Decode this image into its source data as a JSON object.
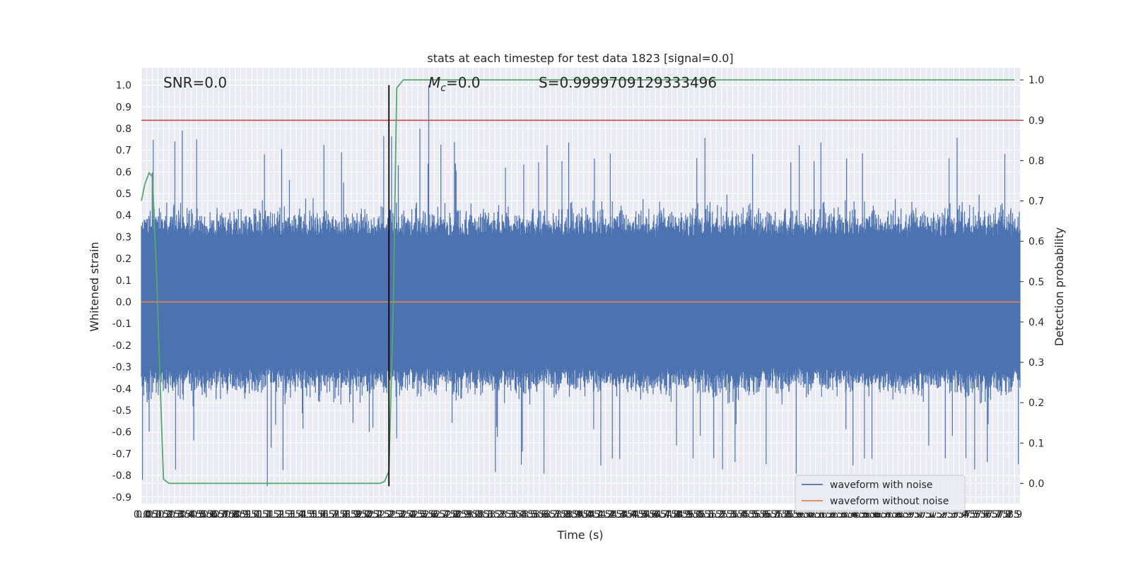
{
  "chart_data": {
    "type": "line",
    "title": "stats at each timestep for test data 1823 [signal=0.0]",
    "xlabel": "Time (s)",
    "ylabel": "Whitened strain",
    "y2label": "Detection probability",
    "xlim": [
      0.0,
      7.95
    ],
    "ylim": [
      -0.93,
      1.08
    ],
    "y2lim": [
      -0.05,
      1.03
    ],
    "x_ticks": [
      0.0,
      0.05,
      0.1,
      0.15,
      0.2,
      0.25,
      0.3,
      0.35,
      0.4,
      0.45,
      0.5,
      0.55,
      0.6,
      0.65,
      0.7,
      0.75,
      0.8,
      0.85,
      0.9,
      0.95,
      1.0,
      1.05,
      1.1,
      1.15,
      1.2,
      1.25,
      1.3,
      1.35,
      1.4,
      1.45,
      1.5,
      1.55,
      1.6,
      1.65,
      1.7,
      1.75,
      1.8,
      1.85,
      1.9,
      1.95,
      2.0,
      2.05,
      2.1,
      2.15,
      2.2,
      2.25,
      2.3,
      2.35,
      2.4,
      2.45,
      2.5,
      2.55,
      2.6,
      2.65,
      2.7,
      2.75,
      2.8,
      2.85,
      2.9,
      2.95,
      3.0,
      3.05,
      3.1,
      3.15,
      3.2,
      3.25,
      3.3,
      3.35,
      3.4,
      3.45,
      3.5,
      3.55,
      3.6,
      3.65,
      3.7,
      3.75,
      3.8,
      3.85,
      3.9,
      3.95,
      4.0,
      4.05,
      4.1,
      4.15,
      4.2,
      4.25,
      4.3,
      4.35,
      4.4,
      4.45,
      4.5,
      4.55,
      4.6,
      4.65,
      4.7,
      4.75,
      4.8,
      4.85,
      4.9,
      4.95,
      5.0,
      5.05,
      5.1,
      5.15,
      5.2,
      5.25,
      5.3,
      5.35,
      5.4,
      5.45,
      5.5,
      5.55,
      5.6,
      5.65,
      5.7,
      5.75,
      5.8,
      5.85,
      5.9,
      5.95,
      6.0,
      6.05,
      6.1,
      6.15,
      6.2,
      6.25,
      6.3,
      6.35,
      6.4,
      6.45,
      6.5,
      6.55,
      6.6,
      6.65,
      6.7,
      6.75,
      6.8,
      6.85,
      6.9,
      6.95,
      7.0,
      7.05,
      7.1,
      7.15,
      7.2,
      7.25,
      7.3,
      7.35,
      7.4,
      7.45,
      7.5,
      7.55,
      7.6,
      7.65,
      7.7,
      7.75,
      7.8,
      7.85,
      7.9
    ],
    "y_ticks": [
      "1.0",
      "0.9",
      "0.8",
      "0.7",
      "0.6",
      "0.5",
      "0.4",
      "0.3",
      "0.2",
      "0.1",
      "0.0",
      "-0.1",
      "-0.2",
      "-0.3",
      "-0.4",
      "-0.5",
      "-0.6",
      "-0.7",
      "-0.8",
      "-0.9"
    ],
    "y2_ticks": [
      "1.0",
      "0.9",
      "0.8",
      "0.7",
      "0.6",
      "0.5",
      "0.4",
      "0.3",
      "0.2",
      "0.1",
      "0.0"
    ],
    "threshold_y2": 0.9,
    "event_time": 2.24,
    "annotations": {
      "snr": "SNR=0.0",
      "mc_label": "M",
      "mc_sub": "c",
      "mc_value": "=0.0",
      "s": "S=0.9999709129333496"
    },
    "series": [
      {
        "name": "waveform with noise",
        "color": "#4c72b0",
        "kind": "noise",
        "amplitude_range": [
          -0.85,
          1.0
        ]
      },
      {
        "name": "waveform without noise",
        "color": "#dd8452",
        "kind": "flat",
        "value": 0.0
      },
      {
        "color": "#55a868",
        "axis": "y2",
        "x": [
          0.0,
          0.03,
          0.07,
          0.1,
          0.14,
          0.18,
          0.2,
          0.25,
          0.3,
          0.5,
          1.0,
          1.5,
          2.0,
          2.1,
          2.16,
          2.2,
          2.24,
          2.28,
          2.31,
          2.37,
          2.45,
          3.0,
          4.0,
          5.0,
          6.0,
          7.0,
          7.9
        ],
        "y": [
          0.7,
          0.74,
          0.77,
          0.76,
          0.5,
          0.17,
          0.01,
          0.0,
          0.0,
          0.0,
          0.0,
          0.0,
          0.0,
          0.0,
          0.0,
          0.005,
          0.03,
          0.45,
          0.98,
          1.0,
          1.0,
          1.0,
          1.0,
          1.0,
          1.0,
          1.0,
          1.0
        ]
      }
    ],
    "threshold_color": "#c44e52",
    "legend_position": "lower-right",
    "grid": true
  }
}
